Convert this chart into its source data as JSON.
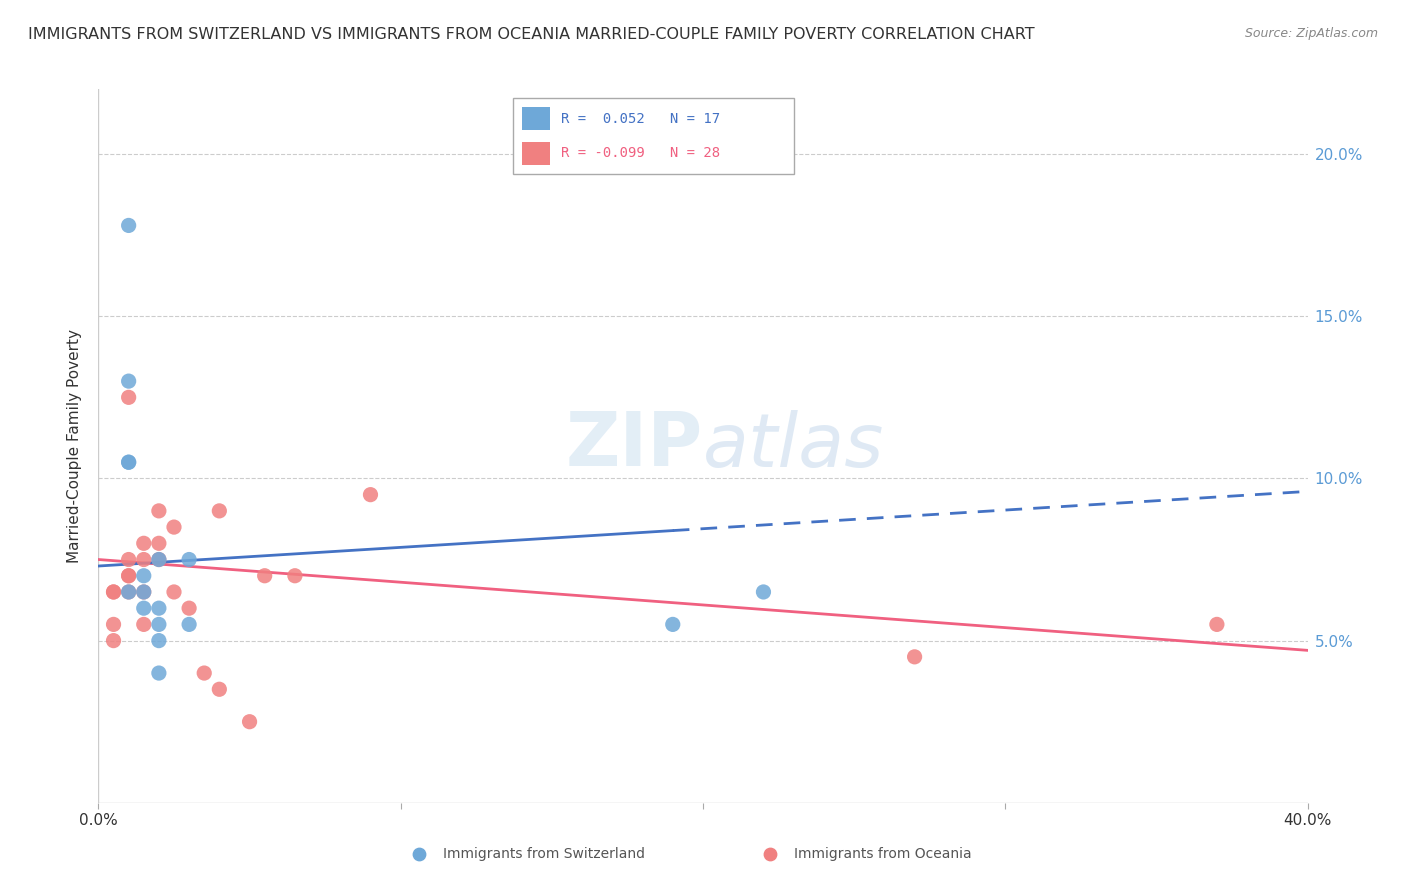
{
  "title": "IMMIGRANTS FROM SWITZERLAND VS IMMIGRANTS FROM OCEANIA MARRIED-COUPLE FAMILY POVERTY CORRELATION CHART",
  "source": "Source: ZipAtlas.com",
  "ylabel": "Married-Couple Family Poverty",
  "right_yticks": [
    "5.0%",
    "10.0%",
    "15.0%",
    "20.0%"
  ],
  "right_ytick_vals": [
    0.05,
    0.1,
    0.15,
    0.2
  ],
  "xlim": [
    0.0,
    0.4
  ],
  "ylim": [
    0.0,
    0.22
  ],
  "watermark_zip": "ZIP",
  "watermark_atlas": "atlas",
  "color_swiss": "#6ea8d8",
  "color_oceania": "#f08080",
  "color_swiss_line": "#4472c4",
  "color_oceania_line": "#f06080",
  "swiss_scatter_x": [
    0.01,
    0.01,
    0.01,
    0.01,
    0.01,
    0.015,
    0.015,
    0.015,
    0.02,
    0.02,
    0.02,
    0.02,
    0.02,
    0.03,
    0.03,
    0.19,
    0.22
  ],
  "swiss_scatter_y": [
    0.178,
    0.13,
    0.105,
    0.105,
    0.065,
    0.07,
    0.065,
    0.06,
    0.075,
    0.06,
    0.055,
    0.05,
    0.04,
    0.075,
    0.055,
    0.055,
    0.065
  ],
  "oceania_scatter_x": [
    0.005,
    0.005,
    0.005,
    0.005,
    0.01,
    0.01,
    0.01,
    0.01,
    0.01,
    0.015,
    0.015,
    0.015,
    0.015,
    0.02,
    0.02,
    0.02,
    0.025,
    0.025,
    0.03,
    0.035,
    0.04,
    0.04,
    0.05,
    0.055,
    0.065,
    0.09,
    0.27,
    0.37
  ],
  "oceania_scatter_y": [
    0.065,
    0.065,
    0.055,
    0.05,
    0.125,
    0.075,
    0.07,
    0.07,
    0.065,
    0.08,
    0.075,
    0.065,
    0.055,
    0.09,
    0.08,
    0.075,
    0.085,
    0.065,
    0.06,
    0.04,
    0.09,
    0.035,
    0.025,
    0.07,
    0.07,
    0.095,
    0.045,
    0.055
  ],
  "swiss_line_x": [
    0.0,
    0.4
  ],
  "swiss_line_y": [
    0.073,
    0.096
  ],
  "swiss_line_split": 0.19,
  "oceania_line_x": [
    0.0,
    0.4
  ],
  "oceania_line_y": [
    0.075,
    0.047
  ],
  "legend_r1": "R =  0.052",
  "legend_n1": "N = 17",
  "legend_r2": "R = -0.099",
  "legend_n2": "N = 28"
}
